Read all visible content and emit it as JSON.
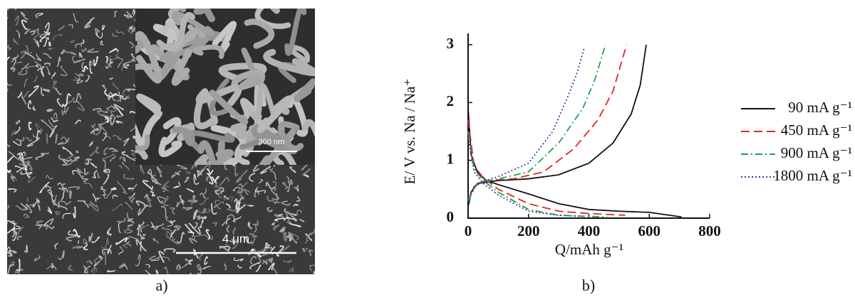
{
  "image": {
    "panel_label": "a)",
    "scale_bar": "4 μm",
    "inset_scale_bar": "300 nm"
  },
  "chart_data": {
    "type": "line",
    "panel_label": "b)",
    "x_label": "Q/mAh g⁻¹",
    "y_label": "E/ V vs. Na / Na⁺",
    "xlim": [
      0,
      800
    ],
    "xticks": [
      0,
      200,
      400,
      600,
      800
    ],
    "ylim": [
      0,
      3
    ],
    "yticks": [
      0,
      1,
      2,
      3
    ],
    "legend": "right",
    "series": [
      {
        "name": "90 mA g⁻¹",
        "color": "#111111",
        "dash": "solid",
        "discharge": {
          "x": [
            0,
            10,
            30,
            60,
            100,
            200,
            300,
            400,
            500,
            600,
            707
          ],
          "values": [
            1.9,
            1.1,
            0.8,
            0.65,
            0.58,
            0.42,
            0.25,
            0.15,
            0.12,
            0.1,
            0.02
          ]
        },
        "charge": {
          "x": [
            0,
            10,
            30,
            100,
            200,
            300,
            400,
            480,
            540,
            570,
            590
          ],
          "values": [
            0.2,
            0.45,
            0.6,
            0.65,
            0.68,
            0.75,
            0.95,
            1.3,
            1.8,
            2.3,
            3.0
          ]
        }
      },
      {
        "name": "450 mA g⁻¹",
        "color": "#e0262b",
        "dash": "dashed",
        "discharge": {
          "x": [
            0,
            20,
            50,
            100,
            200,
            300,
            400,
            520
          ],
          "values": [
            1.7,
            0.9,
            0.7,
            0.5,
            0.25,
            0.12,
            0.08,
            0.05
          ]
        },
        "charge": {
          "x": [
            0,
            20,
            60,
            150,
            250,
            350,
            430,
            480,
            525
          ],
          "values": [
            0.3,
            0.55,
            0.65,
            0.68,
            0.8,
            1.2,
            1.7,
            2.2,
            3.0
          ]
        }
      },
      {
        "name": "900 mA g⁻¹",
        "color": "#1aa64a",
        "dash": "dashdot",
        "discharge": {
          "x": [
            0,
            20,
            50,
            100,
            200,
            300,
            400,
            460
          ],
          "values": [
            1.5,
            0.85,
            0.65,
            0.45,
            0.15,
            0.05,
            0.03,
            0.02
          ]
        },
        "charge": {
          "x": [
            0,
            30,
            100,
            200,
            300,
            380,
            420,
            455
          ],
          "values": [
            0.3,
            0.6,
            0.68,
            0.8,
            1.3,
            1.9,
            2.4,
            3.0
          ]
        }
      },
      {
        "name": "1800 mA g⁻¹",
        "color": "#3a3f9e",
        "dash": "dotted",
        "discharge": {
          "x": [
            0,
            20,
            50,
            100,
            200,
            300,
            380
          ],
          "values": [
            1.4,
            0.8,
            0.6,
            0.4,
            0.12,
            0.05,
            0.03
          ]
        },
        "charge": {
          "x": [
            0,
            30,
            100,
            200,
            280,
            330,
            360,
            385
          ],
          "values": [
            0.35,
            0.6,
            0.72,
            0.95,
            1.5,
            2.1,
            2.5,
            2.95
          ]
        }
      }
    ]
  }
}
